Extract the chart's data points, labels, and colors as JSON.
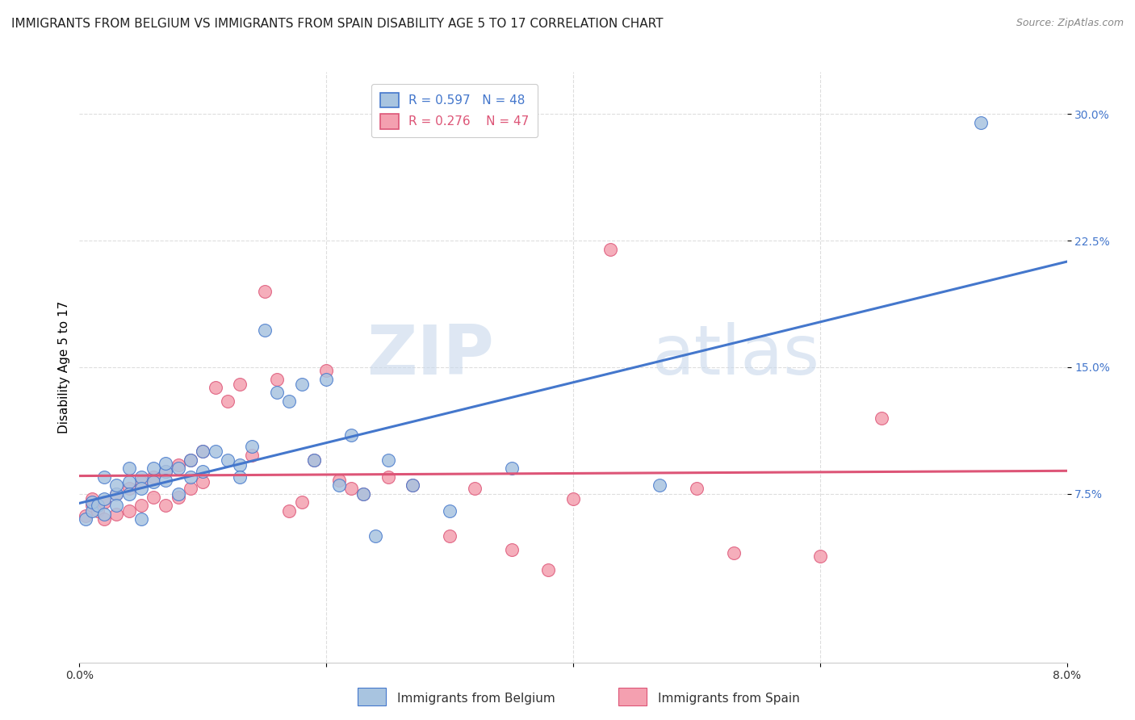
{
  "title": "IMMIGRANTS FROM BELGIUM VS IMMIGRANTS FROM SPAIN DISABILITY AGE 5 TO 17 CORRELATION CHART",
  "source": "Source: ZipAtlas.com",
  "ylabel": "Disability Age 5 to 17",
  "xlim": [
    0.0,
    0.08
  ],
  "ylim": [
    -0.025,
    0.325
  ],
  "ytick_vals": [
    0.075,
    0.15,
    0.225,
    0.3
  ],
  "ytick_labels": [
    "7.5%",
    "15.0%",
    "22.5%",
    "30.0%"
  ],
  "xtick_vals": [
    0.0,
    0.02,
    0.04,
    0.06,
    0.08
  ],
  "xtick_labels": [
    "0.0%",
    "",
    "",
    "",
    "8.0%"
  ],
  "grid_color": "#dddddd",
  "background_color": "#ffffff",
  "belgium_color": "#a8c4e0",
  "spain_color": "#f4a0b0",
  "belgium_line_color": "#4477cc",
  "spain_line_color": "#dd5577",
  "legend_R_belgium": "0.597",
  "legend_N_belgium": "48",
  "legend_R_spain": "0.276",
  "legend_N_spain": "47",
  "legend_label_belgium": "Immigrants from Belgium",
  "legend_label_spain": "Immigrants from Spain",
  "watermark_part1": "ZIP",
  "watermark_part2": "atlas",
  "belgium_scatter_x": [
    0.0005,
    0.001,
    0.001,
    0.0015,
    0.002,
    0.002,
    0.002,
    0.003,
    0.003,
    0.003,
    0.004,
    0.004,
    0.004,
    0.005,
    0.005,
    0.005,
    0.006,
    0.006,
    0.007,
    0.007,
    0.007,
    0.008,
    0.008,
    0.009,
    0.009,
    0.01,
    0.01,
    0.011,
    0.012,
    0.013,
    0.013,
    0.014,
    0.015,
    0.016,
    0.017,
    0.018,
    0.019,
    0.02,
    0.021,
    0.022,
    0.023,
    0.024,
    0.025,
    0.027,
    0.03,
    0.035,
    0.047,
    0.073
  ],
  "belgium_scatter_y": [
    0.06,
    0.065,
    0.07,
    0.068,
    0.072,
    0.063,
    0.085,
    0.075,
    0.08,
    0.068,
    0.082,
    0.09,
    0.075,
    0.085,
    0.078,
    0.06,
    0.09,
    0.082,
    0.088,
    0.083,
    0.093,
    0.09,
    0.075,
    0.085,
    0.095,
    0.1,
    0.088,
    0.1,
    0.095,
    0.092,
    0.085,
    0.103,
    0.172,
    0.135,
    0.13,
    0.14,
    0.095,
    0.143,
    0.08,
    0.11,
    0.075,
    0.05,
    0.095,
    0.08,
    0.065,
    0.09,
    0.08,
    0.295
  ],
  "spain_scatter_x": [
    0.0005,
    0.001,
    0.001,
    0.0015,
    0.002,
    0.002,
    0.003,
    0.003,
    0.004,
    0.004,
    0.005,
    0.005,
    0.006,
    0.006,
    0.007,
    0.007,
    0.008,
    0.008,
    0.009,
    0.009,
    0.01,
    0.01,
    0.011,
    0.012,
    0.013,
    0.014,
    0.015,
    0.016,
    0.017,
    0.018,
    0.019,
    0.02,
    0.021,
    0.022,
    0.023,
    0.025,
    0.027,
    0.03,
    0.032,
    0.035,
    0.038,
    0.04,
    0.043,
    0.05,
    0.053,
    0.06,
    0.065
  ],
  "spain_scatter_y": [
    0.062,
    0.068,
    0.072,
    0.065,
    0.07,
    0.06,
    0.075,
    0.063,
    0.078,
    0.065,
    0.082,
    0.068,
    0.085,
    0.073,
    0.088,
    0.068,
    0.092,
    0.073,
    0.095,
    0.078,
    0.1,
    0.082,
    0.138,
    0.13,
    0.14,
    0.098,
    0.195,
    0.143,
    0.065,
    0.07,
    0.095,
    0.148,
    0.083,
    0.078,
    0.075,
    0.085,
    0.08,
    0.05,
    0.078,
    0.042,
    0.03,
    0.072,
    0.22,
    0.078,
    0.04,
    0.038,
    0.12
  ],
  "title_fontsize": 11,
  "axis_label_fontsize": 11,
  "tick_fontsize": 10,
  "legend_fontsize": 11
}
